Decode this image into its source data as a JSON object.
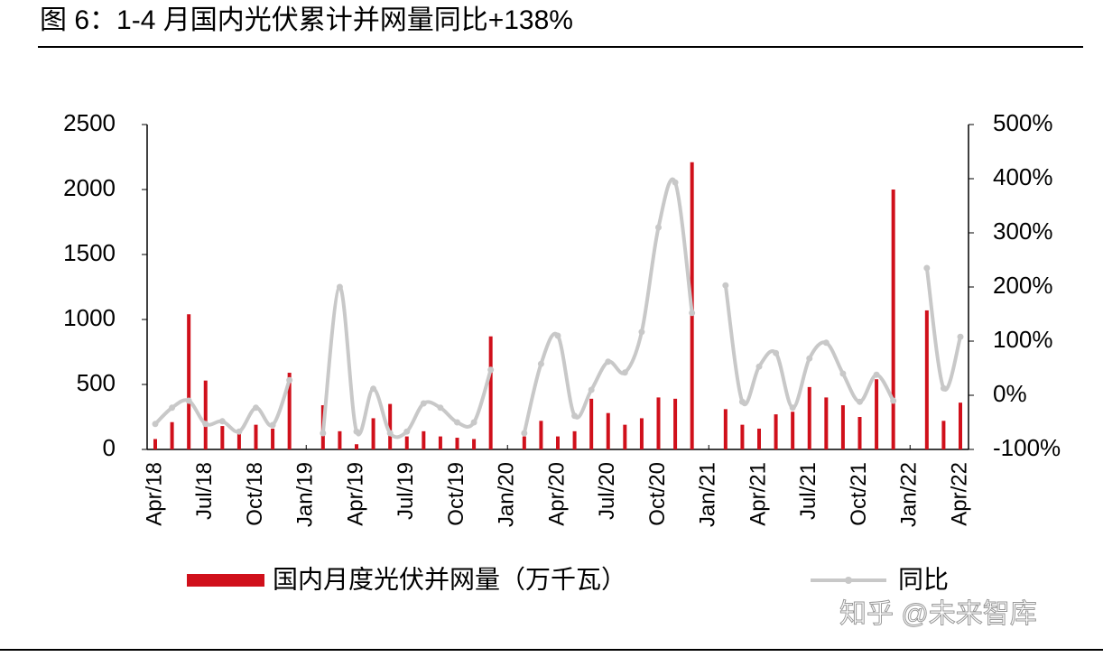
{
  "chart_data": {
    "type": "bar_line",
    "title": "图 6：1-4 月国内光伏累计并网量同比+138%",
    "categories": [
      "Apr/18",
      null,
      null,
      "Jul/18",
      null,
      null,
      "Oct/18",
      null,
      null,
      "Jan/19",
      null,
      null,
      "Apr/19",
      null,
      null,
      "Jul/19",
      null,
      null,
      "Oct/19",
      null,
      null,
      "Jan/20",
      null,
      null,
      "Apr/20",
      null,
      null,
      "Jul/20",
      null,
      null,
      "Oct/20",
      null,
      null,
      "Jan/21",
      null,
      null,
      "Apr/21",
      null,
      null,
      "Jul/21",
      null,
      null,
      "Oct/21",
      null,
      null,
      "Jan/22",
      null,
      null,
      "Apr/22"
    ],
    "series": [
      {
        "name": "国内月度光伏并网量（万千瓦）",
        "type": "bar",
        "color": "#d0101b",
        "values": [
          80,
          210,
          1040,
          530,
          180,
          130,
          190,
          160,
          590,
          null,
          340,
          140,
          40,
          240,
          350,
          100,
          140,
          100,
          90,
          80,
          870,
          null,
          100,
          220,
          100,
          140,
          390,
          280,
          190,
          240,
          400,
          390,
          2210,
          null,
          310,
          190,
          160,
          270,
          290,
          480,
          400,
          340,
          250,
          540,
          2000,
          null,
          1070,
          220,
          360
        ]
      },
      {
        "name": "同比",
        "type": "line",
        "axis": "y2",
        "color": "#c8c8c8",
        "values": [
          -53,
          -23,
          -10,
          -53,
          -48,
          -67,
          -23,
          -55,
          28,
          null,
          -70,
          200,
          -67,
          12,
          -70,
          -67,
          -15,
          -23,
          -50,
          -50,
          47,
          null,
          -70,
          58,
          110,
          -38,
          10,
          62,
          42,
          117,
          310,
          393,
          152,
          null,
          203,
          -12,
          53,
          78,
          -23,
          68,
          97,
          40,
          -12,
          38,
          -10,
          null,
          235,
          13,
          108
        ]
      }
    ],
    "ylim": [
      0,
      2500
    ],
    "yticks": [
      0,
      500,
      1000,
      1500,
      2000,
      2500
    ],
    "y2lim": [
      -100,
      500
    ],
    "y2ticks": [
      {
        "value": -100,
        "label": "-100%"
      },
      {
        "value": 0,
        "label": "0%"
      },
      {
        "value": 100,
        "label": "100%"
      },
      {
        "value": 200,
        "label": "200%"
      },
      {
        "value": 300,
        "label": "300%"
      },
      {
        "value": 400,
        "label": "400%"
      },
      {
        "value": 500,
        "label": "500%"
      }
    ],
    "legend": "bottom",
    "watermark": "知乎 @未来智库"
  }
}
